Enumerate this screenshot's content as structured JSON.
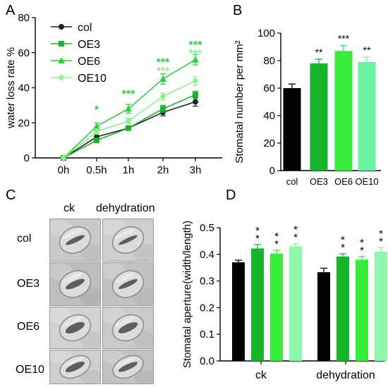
{
  "panels": {
    "a": "A",
    "b": "B",
    "c": "C",
    "d": "D"
  },
  "chart_data": [
    {
      "type": "line",
      "panel": "A",
      "ylabel": "water loss rate %",
      "x": [
        "0h",
        "0.5h",
        "1h",
        "2h",
        "3h"
      ],
      "ylim": [
        0,
        80
      ],
      "yticks": [
        "0",
        "20",
        "40",
        "60",
        "80"
      ],
      "legend": "top-left",
      "series": [
        {
          "name": "col",
          "values": [
            0,
            12,
            17,
            26,
            32
          ],
          "err": [
            0,
            1.5,
            1.2,
            2,
            2.5
          ],
          "color": "#222222",
          "marker": "circle"
        },
        {
          "name": "OE3",
          "values": [
            0,
            10,
            17,
            28,
            36
          ],
          "err": [
            0,
            1.2,
            1.2,
            2,
            2
          ],
          "color": "#17b52c",
          "marker": "square"
        },
        {
          "name": "OE6",
          "values": [
            0,
            18,
            28,
            45,
            56
          ],
          "err": [
            0,
            2,
            2.5,
            3,
            3
          ],
          "color": "#28d43a",
          "marker": "triangle"
        },
        {
          "name": "OE10",
          "values": [
            0,
            15,
            21,
            35,
            44
          ],
          "err": [
            0,
            1.5,
            1.5,
            2,
            2.5
          ],
          "color": "#8cf08c",
          "marker": "diamond"
        }
      ],
      "annotations": [
        {
          "x": "0.5h",
          "y": 27,
          "text": "*",
          "color": "#28d43a"
        },
        {
          "x": "1h",
          "y": 36,
          "text": "***",
          "color": "#28d43a"
        },
        {
          "x": "2h",
          "y": 54,
          "text": "***",
          "color": "#28d43a"
        },
        {
          "x": "2h",
          "y": 49,
          "text": "***",
          "color": "#8cf08c"
        },
        {
          "x": "3h",
          "y": 64,
          "text": "***",
          "color": "#28d43a"
        },
        {
          "x": "3h",
          "y": 59,
          "text": "***",
          "color": "#8cf08c"
        }
      ]
    },
    {
      "type": "bar",
      "panel": "B",
      "ylabel": "Stomatal number per mm²",
      "categories": [
        "col",
        "OE3",
        "OE6",
        "OE10"
      ],
      "values": [
        60,
        78,
        87,
        79
      ],
      "err": [
        3,
        3,
        4,
        3.5
      ],
      "colors": [
        "#000000",
        "#18b42a",
        "#38ec3c",
        "#6cf3a0"
      ],
      "sig": [
        "",
        "**",
        "***",
        "**"
      ],
      "ylim": [
        0,
        100
      ],
      "yticks": [
        "0",
        "20",
        "40",
        "60",
        "80",
        "100"
      ]
    },
    {
      "type": "bar",
      "panel": "D",
      "ylabel": "Stomatal aperture(width/length)",
      "groups": [
        "ck",
        "dehydration"
      ],
      "series": [
        {
          "name": "col",
          "values": [
            0.37,
            0.333
          ],
          "err": [
            0.008,
            0.015
          ],
          "color": "#000000",
          "sig": [
            "",
            ""
          ]
        },
        {
          "name": "OE3",
          "values": [
            0.422,
            0.392
          ],
          "err": [
            0.015,
            0.01
          ],
          "color": "#18b42a",
          "sig": [
            "**",
            "**"
          ]
        },
        {
          "name": "OE6",
          "values": [
            0.403,
            0.38
          ],
          "err": [
            0.012,
            0.012
          ],
          "color": "#38ec3c",
          "sig": [
            "**",
            "**"
          ]
        },
        {
          "name": "OE10",
          "values": [
            0.43,
            0.41
          ],
          "err": [
            0.01,
            0.015
          ],
          "color": "#8cf8ac",
          "sig": [
            "**",
            "**"
          ]
        }
      ],
      "ylim": [
        0,
        0.5
      ],
      "yticks": [
        "0.0",
        "0.1",
        "0.2",
        "0.3",
        "0.4",
        "0.5"
      ]
    }
  ],
  "micrographs": {
    "columns": [
      "ck",
      "dehydration"
    ],
    "rows": [
      "col",
      "OE3",
      "OE6",
      "OE10"
    ],
    "cells": [
      {
        "open": 0.35,
        "bg": "#c9c9c9",
        "hatch": false
      },
      {
        "open": 0.3,
        "bg": "#cfcfcf",
        "hatch": false
      },
      {
        "open": 0.45,
        "bg": "#bdbdbd",
        "hatch": false
      },
      {
        "open": 0.35,
        "bg": "#c2c2c2",
        "hatch": false
      },
      {
        "open": 0.6,
        "bg": "#d2d2d2",
        "hatch": false
      },
      {
        "open": 0.55,
        "bg": "#cacaca",
        "hatch": false
      },
      {
        "open": 0.6,
        "bg": "#cfcfcf",
        "hatch": false
      },
      {
        "open": 0.5,
        "bg": "#c6c6c6",
        "hatch": true
      }
    ]
  }
}
